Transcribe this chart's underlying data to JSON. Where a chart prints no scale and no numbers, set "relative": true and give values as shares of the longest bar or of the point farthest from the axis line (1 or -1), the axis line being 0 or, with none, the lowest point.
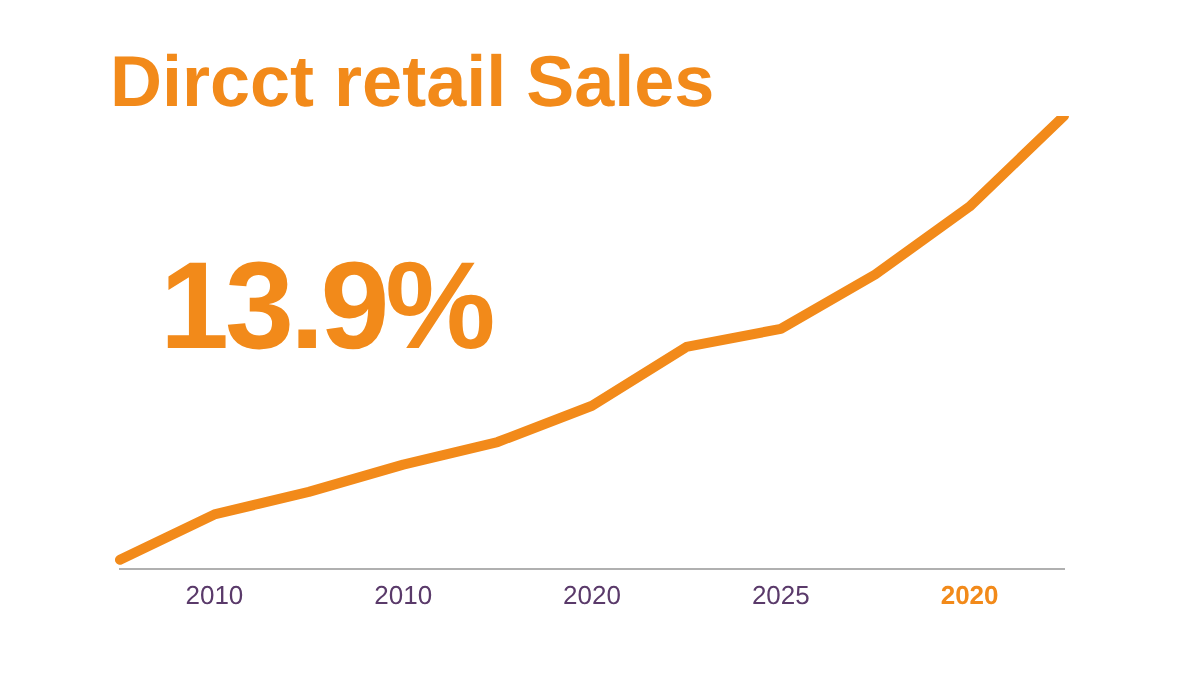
{
  "chart_data": {
    "type": "line",
    "title": "Dircct retail Sales",
    "annotations": [
      "13.9%"
    ],
    "relative": true,
    "categories": [
      null,
      "2010",
      null,
      "2010",
      null,
      "2020",
      null,
      "2025",
      null,
      "2020",
      null
    ],
    "series": [
      {
        "color": "#f28a1a",
        "values": [
          0.02,
          0.12,
          0.17,
          0.23,
          0.28,
          0.36,
          0.49,
          0.53,
          0.65,
          0.8,
          1.0
        ]
      }
    ],
    "legend": false,
    "grid": false,
    "marker": "none",
    "line_style": "solid"
  }
}
